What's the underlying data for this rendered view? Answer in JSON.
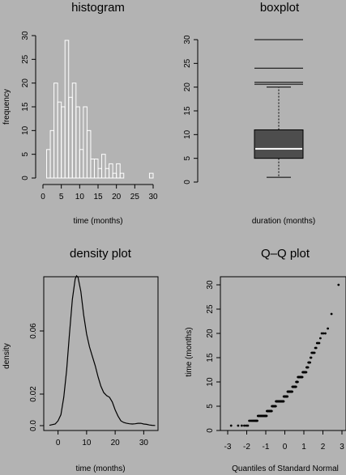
{
  "chart_data": [
    {
      "type": "bar",
      "title": "histogram",
      "xlabel": "time (months)",
      "ylabel": "frequency",
      "x_ticks": [
        "0",
        "5",
        "10",
        "15",
        "20",
        "25",
        "30"
      ],
      "y_ticks": [
        "0",
        "5",
        "10",
        "15",
        "20",
        "25",
        "30"
      ],
      "xlim": [
        0,
        30
      ],
      "ylim": [
        0,
        30
      ],
      "bin_width": 1,
      "bin_starts": [
        1,
        2,
        3,
        4,
        5,
        6,
        7,
        8,
        9,
        10,
        11,
        12,
        13,
        14,
        15,
        16,
        17,
        18,
        19,
        20,
        21,
        22,
        23,
        24,
        25,
        26,
        27,
        28,
        29
      ],
      "values": [
        6,
        10,
        20,
        16,
        15,
        29,
        17,
        20,
        15,
        6,
        15,
        10,
        4,
        4,
        2,
        5,
        2,
        3,
        1,
        3,
        1,
        0,
        0,
        0,
        0,
        0,
        0,
        0,
        1
      ]
    },
    {
      "type": "boxplot",
      "title": "boxplot",
      "xlabel": "duration (months)",
      "y_ticks": [
        "0",
        "5",
        "10",
        "15",
        "20",
        "25",
        "30"
      ],
      "ylim": [
        0,
        30
      ],
      "median": 7,
      "q1": 5,
      "q3": 11,
      "whisker_low": 1,
      "whisker_high": 20,
      "outliers": [
        20.6,
        21,
        24,
        30
      ]
    },
    {
      "type": "line",
      "title": "density plot",
      "xlabel": "time (months)",
      "ylabel": "density",
      "x_ticks": [
        "0",
        "10",
        "20",
        "30"
      ],
      "y_ticks": [
        "0.0",
        "0.02",
        "0.06"
      ],
      "xlim": [
        -5,
        35
      ],
      "ylim": [
        0,
        0.1
      ],
      "x": [
        -3,
        -1,
        0,
        1,
        2,
        3,
        4,
        5,
        6,
        6.5,
        7,
        8,
        9,
        10,
        11,
        12,
        13,
        14,
        15,
        16,
        17,
        18,
        19,
        20,
        21,
        22,
        23,
        24,
        25,
        26,
        27,
        28,
        29,
        30,
        31,
        32,
        33,
        34
      ],
      "y": [
        0.0002,
        0.001,
        0.003,
        0.007,
        0.018,
        0.035,
        0.058,
        0.08,
        0.093,
        0.095,
        0.094,
        0.085,
        0.07,
        0.058,
        0.05,
        0.044,
        0.038,
        0.031,
        0.025,
        0.021,
        0.019,
        0.018,
        0.015,
        0.01,
        0.006,
        0.003,
        0.002,
        0.0015,
        0.0012,
        0.001,
        0.0012,
        0.0015,
        0.0015,
        0.001,
        0.0008,
        0.0004,
        0.0002,
        0.0001
      ]
    },
    {
      "type": "scatter",
      "title": "Q–Q plot",
      "xlabel": "Quantiles of Standard Normal",
      "ylabel": "time (months)",
      "x_ticks": [
        "-3",
        "-2",
        "-1",
        "0",
        "1",
        "2",
        "3"
      ],
      "y_ticks": [
        "0",
        "5",
        "10",
        "15",
        "20",
        "25",
        "30"
      ],
      "xlim": [
        -3,
        3
      ],
      "ylim": [
        0,
        30
      ],
      "sorted_values": [
        1,
        1,
        1,
        1,
        1,
        1,
        2,
        2,
        2,
        2,
        2,
        2,
        2,
        2,
        2,
        2,
        3,
        3,
        3,
        3,
        3,
        3,
        3,
        3,
        3,
        3,
        3,
        3,
        3,
        3,
        3,
        3,
        3,
        3,
        3,
        3,
        4,
        4,
        4,
        4,
        4,
        4,
        4,
        4,
        4,
        4,
        4,
        4,
        4,
        4,
        4,
        4,
        5,
        5,
        5,
        5,
        5,
        5,
        5,
        5,
        5,
        5,
        5,
        5,
        5,
        5,
        5,
        6,
        6,
        6,
        6,
        6,
        6,
        6,
        6,
        6,
        6,
        6,
        6,
        6,
        6,
        6,
        6,
        6,
        6,
        6,
        6,
        6,
        6,
        6,
        6,
        6,
        6,
        6,
        6,
        6,
        6,
        6,
        6,
        6,
        7,
        7,
        7,
        7,
        7,
        7,
        7,
        7,
        7,
        7,
        7,
        7,
        7,
        7,
        7,
        7,
        7,
        8,
        8,
        8,
        8,
        8,
        8,
        8,
        8,
        8,
        8,
        8,
        8,
        8,
        8,
        8,
        8,
        8,
        8,
        8,
        8,
        9,
        9,
        9,
        9,
        9,
        9,
        9,
        9,
        9,
        9,
        9,
        9,
        9,
        9,
        9,
        10,
        10,
        10,
        10,
        10,
        10,
        11,
        11,
        11,
        11,
        11,
        11,
        11,
        11,
        11,
        11,
        11,
        11,
        11,
        11,
        11,
        12,
        12,
        12,
        12,
        12,
        12,
        12,
        12,
        12,
        12,
        13,
        13,
        13,
        13,
        14,
        14,
        14,
        14,
        15,
        15,
        16,
        16,
        16,
        16,
        16,
        17,
        17,
        18,
        18,
        18,
        19,
        20,
        20,
        20,
        21,
        24,
        30
      ]
    }
  ]
}
